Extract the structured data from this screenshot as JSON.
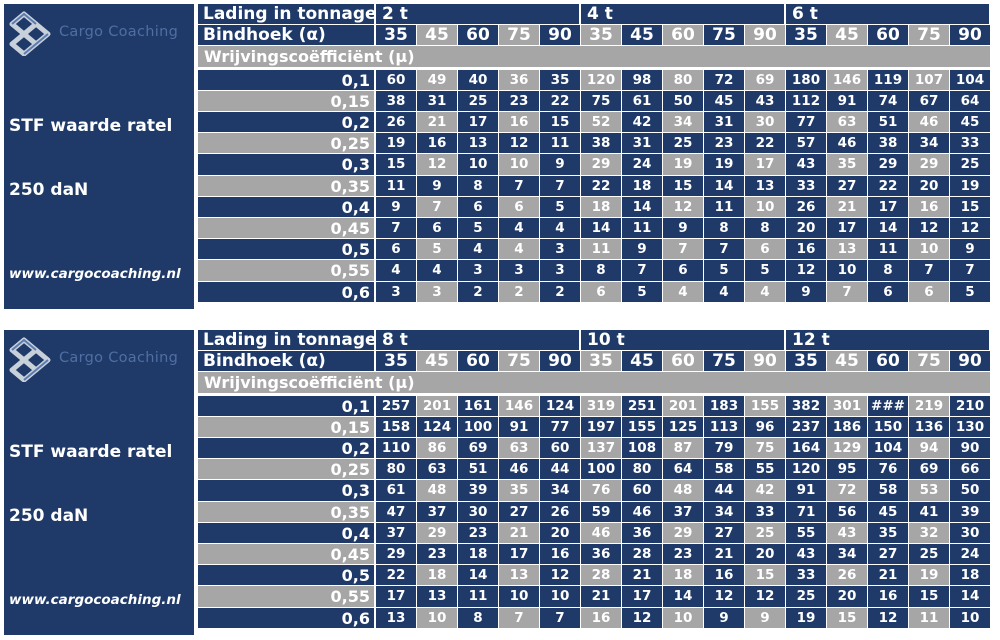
{
  "blocks": [
    {
      "logo_text": "Cargo Coaching",
      "stf_label": "STF waarde ratel",
      "dan_label": "250 daN",
      "url_label": "www.cargocoaching.nl",
      "load_header": "Lading in tonnage",
      "angle_header": "Bindhoek (α)",
      "friction_header": "Wrijvingscoëfficiënt (μ)",
      "loads": [
        "2 t",
        "4 t",
        "6 t"
      ],
      "angles": [
        "35",
        "45",
        "60",
        "75",
        "90"
      ],
      "rows": [
        {
          "mu": "0,1",
          "values": [
            "60",
            "49",
            "40",
            "36",
            "35",
            "120",
            "98",
            "80",
            "72",
            "69",
            "180",
            "146",
            "119",
            "107",
            "104"
          ]
        },
        {
          "mu": "0,15",
          "values": [
            "38",
            "31",
            "25",
            "23",
            "22",
            "75",
            "61",
            "50",
            "45",
            "43",
            "112",
            "91",
            "74",
            "67",
            "64"
          ]
        },
        {
          "mu": "0,2",
          "values": [
            "26",
            "21",
            "17",
            "16",
            "15",
            "52",
            "42",
            "34",
            "31",
            "30",
            "77",
            "63",
            "51",
            "46",
            "45"
          ]
        },
        {
          "mu": "0,25",
          "values": [
            "19",
            "16",
            "13",
            "12",
            "11",
            "38",
            "31",
            "25",
            "23",
            "22",
            "57",
            "46",
            "38",
            "34",
            "33"
          ]
        },
        {
          "mu": "0,3",
          "values": [
            "15",
            "12",
            "10",
            "10",
            "9",
            "29",
            "24",
            "19",
            "19",
            "17",
            "43",
            "35",
            "29",
            "29",
            "25"
          ]
        },
        {
          "mu": "0,35",
          "values": [
            "11",
            "9",
            "8",
            "7",
            "7",
            "22",
            "18",
            "15",
            "14",
            "13",
            "33",
            "27",
            "22",
            "20",
            "19"
          ]
        },
        {
          "mu": "0,4",
          "values": [
            "9",
            "7",
            "6",
            "6",
            "5",
            "18",
            "14",
            "12",
            "11",
            "10",
            "26",
            "21",
            "17",
            "16",
            "15"
          ]
        },
        {
          "mu": "0,45",
          "values": [
            "7",
            "6",
            "5",
            "4",
            "4",
            "14",
            "11",
            "9",
            "8",
            "8",
            "20",
            "17",
            "14",
            "12",
            "12"
          ]
        },
        {
          "mu": "0,5",
          "values": [
            "6",
            "5",
            "4",
            "4",
            "3",
            "11",
            "9",
            "7",
            "7",
            "6",
            "16",
            "13",
            "11",
            "10",
            "9"
          ]
        },
        {
          "mu": "0,55",
          "values": [
            "4",
            "4",
            "3",
            "3",
            "3",
            "8",
            "7",
            "6",
            "5",
            "5",
            "12",
            "10",
            "8",
            "7",
            "7"
          ]
        },
        {
          "mu": "0,6",
          "values": [
            "3",
            "3",
            "2",
            "2",
            "2",
            "6",
            "5",
            "4",
            "4",
            "4",
            "9",
            "7",
            "6",
            "6",
            "5"
          ]
        }
      ]
    },
    {
      "logo_text": "Cargo Coaching",
      "stf_label": "STF waarde ratel",
      "dan_label": "250 daN",
      "url_label": "www.cargocoaching.nl",
      "load_header": "Lading in tonnage",
      "angle_header": "Bindhoek (α)",
      "friction_header": "Wrijvingscoëfficiënt (μ)",
      "loads": [
        "8 t",
        "10 t",
        "12 t"
      ],
      "angles": [
        "35",
        "45",
        "60",
        "75",
        "90"
      ],
      "rows": [
        {
          "mu": "0,1",
          "values": [
            "257",
            "201",
            "161",
            "146",
            "124",
            "319",
            "251",
            "201",
            "183",
            "155",
            "382",
            "301",
            "###",
            "219",
            "210"
          ]
        },
        {
          "mu": "0,15",
          "values": [
            "158",
            "124",
            "100",
            "91",
            "77",
            "197",
            "155",
            "125",
            "113",
            "96",
            "237",
            "186",
            "150",
            "136",
            "130"
          ]
        },
        {
          "mu": "0,2",
          "values": [
            "110",
            "86",
            "69",
            "63",
            "60",
            "137",
            "108",
            "87",
            "79",
            "75",
            "164",
            "129",
            "104",
            "94",
            "90"
          ]
        },
        {
          "mu": "0,25",
          "values": [
            "80",
            "63",
            "51",
            "46",
            "44",
            "100",
            "80",
            "64",
            "58",
            "55",
            "120",
            "95",
            "76",
            "69",
            "66"
          ]
        },
        {
          "mu": "0,3",
          "values": [
            "61",
            "48",
            "39",
            "35",
            "34",
            "76",
            "60",
            "48",
            "44",
            "42",
            "91",
            "72",
            "58",
            "53",
            "50"
          ]
        },
        {
          "mu": "0,35",
          "values": [
            "47",
            "37",
            "30",
            "27",
            "26",
            "59",
            "46",
            "37",
            "34",
            "33",
            "71",
            "56",
            "45",
            "41",
            "39"
          ]
        },
        {
          "mu": "0,4",
          "values": [
            "37",
            "29",
            "23",
            "21",
            "20",
            "46",
            "36",
            "29",
            "27",
            "25",
            "55",
            "43",
            "35",
            "32",
            "30"
          ]
        },
        {
          "mu": "0,45",
          "values": [
            "29",
            "23",
            "18",
            "17",
            "16",
            "36",
            "28",
            "23",
            "21",
            "20",
            "43",
            "34",
            "27",
            "25",
            "24"
          ]
        },
        {
          "mu": "0,5",
          "values": [
            "22",
            "18",
            "14",
            "13",
            "12",
            "28",
            "21",
            "18",
            "16",
            "15",
            "33",
            "26",
            "21",
            "19",
            "18"
          ]
        },
        {
          "mu": "0,55",
          "values": [
            "17",
            "13",
            "11",
            "10",
            "10",
            "21",
            "17",
            "14",
            "12",
            "12",
            "25",
            "20",
            "16",
            "15",
            "14"
          ]
        },
        {
          "mu": "0,6",
          "values": [
            "13",
            "10",
            "8",
            "7",
            "7",
            "16",
            "12",
            "10",
            "9",
            "9",
            "19",
            "15",
            "12",
            "11",
            "10"
          ]
        }
      ]
    }
  ]
}
